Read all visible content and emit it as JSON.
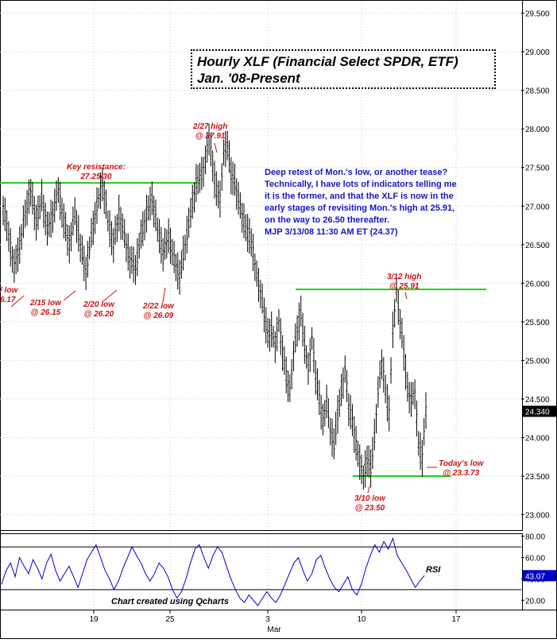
{
  "chart_data": [
    {
      "type": "line",
      "subtype": "ohlc-hourly",
      "title": "Hourly XLF (Financial Select SPDR, ETF)",
      "subtitle": "Jan. '08-Present",
      "y_axis": {
        "position": "right",
        "ylim": [
          22.8,
          29.65
        ],
        "ticks": [
          "23.000",
          "23.500",
          "24.000",
          "24.500",
          "25.000",
          "25.500",
          "26.000",
          "26.500",
          "27.000",
          "27.500",
          "28.000",
          "28.500",
          "29.000",
          "29.500"
        ],
        "last_price_label": "24.340",
        "last_price": 24.34
      },
      "x_axis": {
        "ticks": [
          "19",
          "25",
          "3",
          "10",
          "17"
        ],
        "month_label": "Mar",
        "month_label_under": "3"
      },
      "series": [
        {
          "name": "XLF hourly close",
          "points": [
            [
              0,
              27.0
            ],
            [
              3,
              26.6
            ],
            [
              6,
              26.2
            ],
            [
              9,
              26.5
            ],
            [
              12,
              26.9
            ],
            [
              15,
              27.2
            ],
            [
              18,
              26.8
            ],
            [
              21,
              27.1
            ],
            [
              24,
              26.7
            ],
            [
              27,
              26.9
            ],
            [
              30,
              27.2
            ],
            [
              33,
              26.8
            ],
            [
              36,
              26.5
            ],
            [
              39,
              26.9
            ],
            [
              42,
              26.5
            ],
            [
              45,
              26.15
            ],
            [
              48,
              26.6
            ],
            [
              51,
              27.0
            ],
            [
              54,
              27.3
            ],
            [
              57,
              26.8
            ],
            [
              60,
              26.5
            ],
            [
              63,
              26.9
            ],
            [
              66,
              26.6
            ],
            [
              69,
              26.3
            ],
            [
              72,
              26.2
            ],
            [
              75,
              26.6
            ],
            [
              78,
              26.9
            ],
            [
              81,
              27.1
            ],
            [
              84,
              26.7
            ],
            [
              87,
              26.4
            ],
            [
              90,
              26.6
            ],
            [
              93,
              26.3
            ],
            [
              96,
              26.1
            ],
            [
              99,
              26.5
            ],
            [
              102,
              26.9
            ],
            [
              105,
              27.3
            ],
            [
              108,
              27.4
            ],
            [
              110,
              27.6
            ],
            [
              112,
              27.91
            ],
            [
              114,
              27.5
            ],
            [
              116,
              27.2
            ],
            [
              118,
              27.1
            ],
            [
              120,
              27.7
            ],
            [
              122,
              27.8
            ],
            [
              124,
              27.4
            ],
            [
              126,
              27.3
            ],
            [
              128,
              27.1
            ],
            [
              130,
              26.9
            ],
            [
              132,
              26.7
            ],
            [
              134,
              26.6
            ],
            [
              136,
              26.4
            ],
            [
              138,
              26.1
            ],
            [
              140,
              25.9
            ],
            [
              142,
              25.6
            ],
            [
              144,
              25.3
            ],
            [
              146,
              25.4
            ],
            [
              148,
              25.2
            ],
            [
              150,
              25.5
            ],
            [
              152,
              25.1
            ],
            [
              154,
              24.8
            ],
            [
              156,
              24.6
            ],
            [
              158,
              25.1
            ],
            [
              160,
              25.4
            ],
            [
              162,
              25.6
            ],
            [
              164,
              25.2
            ],
            [
              166,
              24.9
            ],
            [
              168,
              25.3
            ],
            [
              170,
              24.8
            ],
            [
              172,
              24.5
            ],
            [
              174,
              24.2
            ],
            [
              176,
              24.5
            ],
            [
              178,
              24.1
            ],
            [
              180,
              23.9
            ],
            [
              182,
              24.3
            ],
            [
              184,
              24.6
            ],
            [
              186,
              24.9
            ],
            [
              188,
              24.4
            ],
            [
              190,
              24.2
            ],
            [
              192,
              23.9
            ],
            [
              194,
              23.7
            ],
            [
              196,
              23.5
            ],
            [
              198,
              23.7
            ],
            [
              200,
              23.6
            ],
            [
              202,
              24.0
            ],
            [
              204,
              24.6
            ],
            [
              206,
              25.0
            ],
            [
              208,
              24.6
            ],
            [
              210,
              24.3
            ],
            [
              212,
              25.4
            ],
            [
              214,
              25.9
            ],
            [
              216,
              25.5
            ],
            [
              218,
              25.1
            ],
            [
              220,
              24.6
            ],
            [
              222,
              24.5
            ],
            [
              224,
              24.6
            ],
            [
              226,
              23.9
            ],
            [
              228,
              23.73
            ],
            [
              230,
              24.34
            ]
          ]
        }
      ],
      "annotations": [
        {
          "text": [
            "2/27 high",
            "@ 27.91"
          ]
        },
        {
          "text": [
            "Key resistance:",
            "27.25/30"
          ]
        },
        {
          "text": [
            "/ low",
            "6.17"
          ]
        },
        {
          "text": [
            "2/15 low",
            "@ 26.15"
          ]
        },
        {
          "text": [
            "2/20 low",
            "@ 26.20"
          ]
        },
        {
          "text": [
            "2/22 low",
            "@ 26.09"
          ]
        },
        {
          "text": [
            "3/12 high",
            "@ 25.91"
          ]
        },
        {
          "text": [
            "3/10 low",
            "@ 23.50"
          ]
        },
        {
          "text": [
            "Today's low",
            "@ 23.3.73"
          ]
        }
      ],
      "reference_lines": [
        {
          "y": 27.3,
          "color": "#22cc22"
        },
        {
          "y": 25.92,
          "color": "#22cc22"
        },
        {
          "y": 23.5,
          "color": "#22cc22"
        }
      ],
      "commentary": [
        "Deep retest of Mon.'s low, or another tease?",
        "Technically, I have lots of indicators telling me",
        "it is the former, and that the XLF is now in the",
        "early stages of revisiting Mon.'s high at 25.91,",
        "on the way to 26.50 thereafter.",
        "MJP  3/13/08  11:30 AM ET  (24.37)"
      ]
    },
    {
      "type": "line",
      "name": "RSI",
      "series_label": "RSI",
      "y_axis": {
        "ylim": [
          12,
          82
        ],
        "ticks": [
          "20.00",
          "40.00",
          "60.00",
          "80.00"
        ],
        "last_value_label": "43.07",
        "last_value": 43.07
      },
      "reference_lines": [
        {
          "y": 70
        },
        {
          "y": 30
        }
      ],
      "footer": "Chart created using Qcharts",
      "series": [
        {
          "name": "RSI",
          "values": [
            35,
            48,
            55,
            42,
            60,
            52,
            45,
            58,
            50,
            40,
            55,
            63,
            48,
            38,
            45,
            52,
            42,
            32,
            45,
            58,
            65,
            72,
            60,
            48,
            40,
            30,
            38,
            50,
            60,
            70,
            62,
            55,
            45,
            38,
            45,
            55,
            50,
            42,
            30,
            22,
            28,
            40,
            55,
            68,
            72,
            60,
            50,
            62,
            70,
            65,
            52,
            40,
            30,
            22,
            18,
            25,
            20,
            15,
            22,
            28,
            22,
            18,
            25,
            35,
            45,
            55,
            60,
            48,
            38,
            45,
            58,
            62,
            50,
            40,
            32,
            28,
            35,
            42,
            30,
            25,
            35,
            50,
            62,
            72,
            65,
            75,
            68,
            78,
            62,
            55,
            48,
            40,
            32,
            38,
            43.07
          ]
        }
      ],
      "color": "#0000cc"
    }
  ]
}
